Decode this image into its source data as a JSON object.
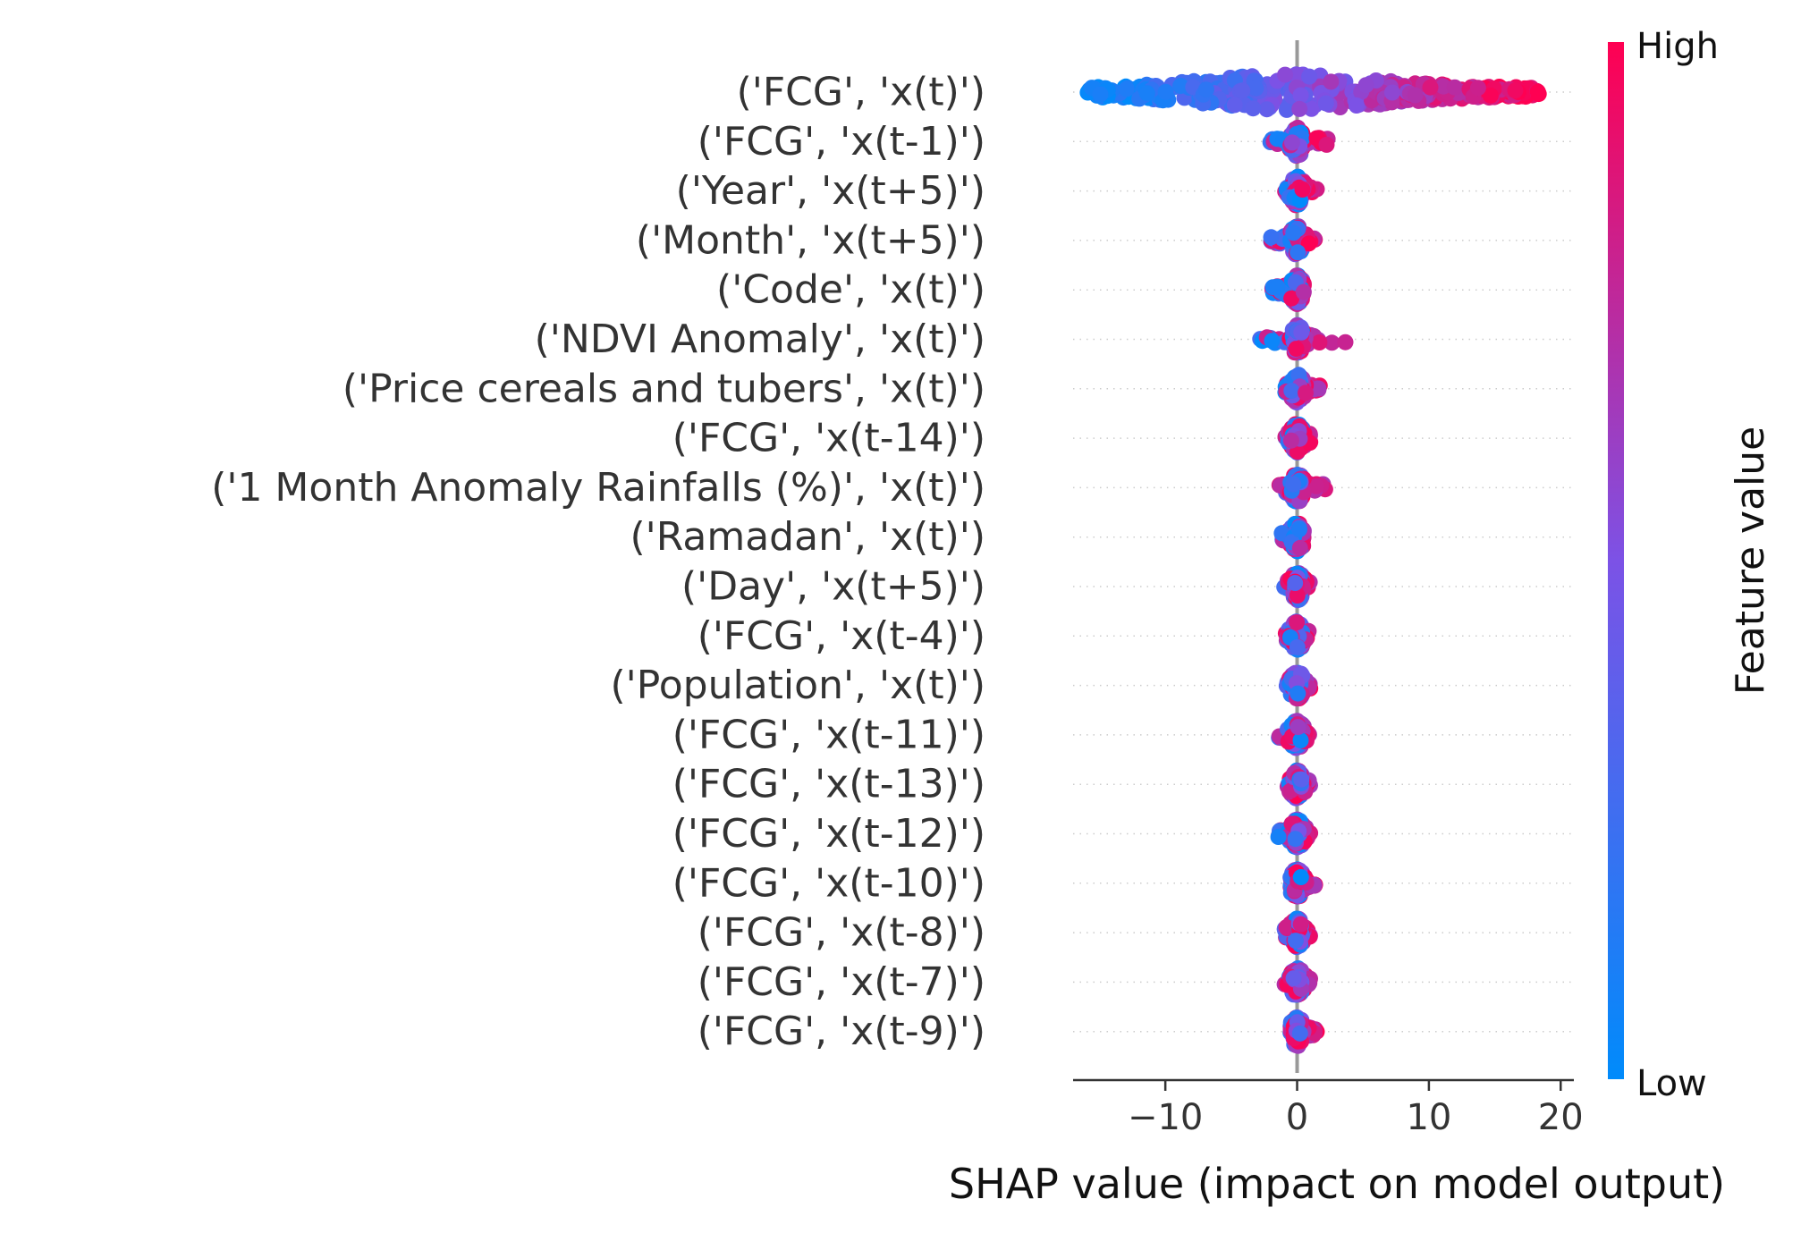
{
  "chart_data": {
    "type": "scatter",
    "subtype": "shap-beeswarm",
    "title": "",
    "xlabel": "SHAP value (impact on model output)",
    "ylabel": "",
    "xlim": [
      -17,
      21
    ],
    "xticks": [
      -10,
      0,
      10,
      20
    ],
    "xtick_labels": [
      "−10",
      "0",
      "10",
      "20"
    ],
    "grid": "dotted horizontal row guides",
    "legend": "colorbar-right",
    "colorbar": {
      "label": "Feature value",
      "high_label": "High",
      "low_label": "Low",
      "low_color": "#008bfb",
      "mid_color": "#7c52e6",
      "high_color": "#ff0052"
    },
    "zero_line_color": "#999999",
    "tick_label_color": "#333333",
    "features": [
      {
        "name": "('FCG', 'x(t)')",
        "min": -16,
        "max": 18.5,
        "spread": 34.5
      },
      {
        "name": "('FCG', 'x(t-1)')",
        "min": -2.5,
        "max": 2.5,
        "spread": 5
      },
      {
        "name": "('Year', 'x(t+5)')",
        "min": -1,
        "max": 1.5,
        "spread": 2.5
      },
      {
        "name": "('Month', 'x(t+5)')",
        "min": -2,
        "max": 1.5,
        "spread": 3.5
      },
      {
        "name": "('Code', 'x(t)')",
        "min": -2,
        "max": 0.5,
        "spread": 2.5
      },
      {
        "name": "('NDVI Anomaly', 'x(t)')",
        "min": -3,
        "max": 3.8,
        "spread": 6.8
      },
      {
        "name": "('Price cereals and tubers', 'x(t)')",
        "min": -1,
        "max": 1.8,
        "spread": 2.8
      },
      {
        "name": "('FCG', 'x(t-14)')",
        "min": -1,
        "max": 1,
        "spread": 2
      },
      {
        "name": "('1 Month Anomaly Rainfalls (%)', 'x(t)')",
        "min": -1.5,
        "max": 2.2,
        "spread": 3.7
      },
      {
        "name": "('Ramadan', 'x(t)')",
        "min": -1.2,
        "max": 0.5,
        "spread": 1.7
      },
      {
        "name": "('Day', 'x(t+5)')",
        "min": -1,
        "max": 1,
        "spread": 2
      },
      {
        "name": "('FCG', 'x(t-4)')",
        "min": -1,
        "max": 1,
        "spread": 2
      },
      {
        "name": "('Population', 'x(t)')",
        "min": -0.8,
        "max": 1,
        "spread": 1.8
      },
      {
        "name": "('FCG', 'x(t-11)')",
        "min": -1.5,
        "max": 1,
        "spread": 2.5
      },
      {
        "name": "('FCG', 'x(t-13)')",
        "min": -0.8,
        "max": 1,
        "spread": 1.8
      },
      {
        "name": "('FCG', 'x(t-12)')",
        "min": -1.5,
        "max": 1,
        "spread": 2.5
      },
      {
        "name": "('FCG', 'x(t-10)')",
        "min": -0.5,
        "max": 1.5,
        "spread": 2
      },
      {
        "name": "('FCG', 'x(t-8)')",
        "min": -1,
        "max": 1,
        "spread": 2
      },
      {
        "name": "('FCG', 'x(t-7)')",
        "min": -1,
        "max": 1,
        "spread": 2
      },
      {
        "name": "('FCG', 'x(t-9)')",
        "min": -0.5,
        "max": 1.5,
        "spread": 2
      }
    ]
  }
}
